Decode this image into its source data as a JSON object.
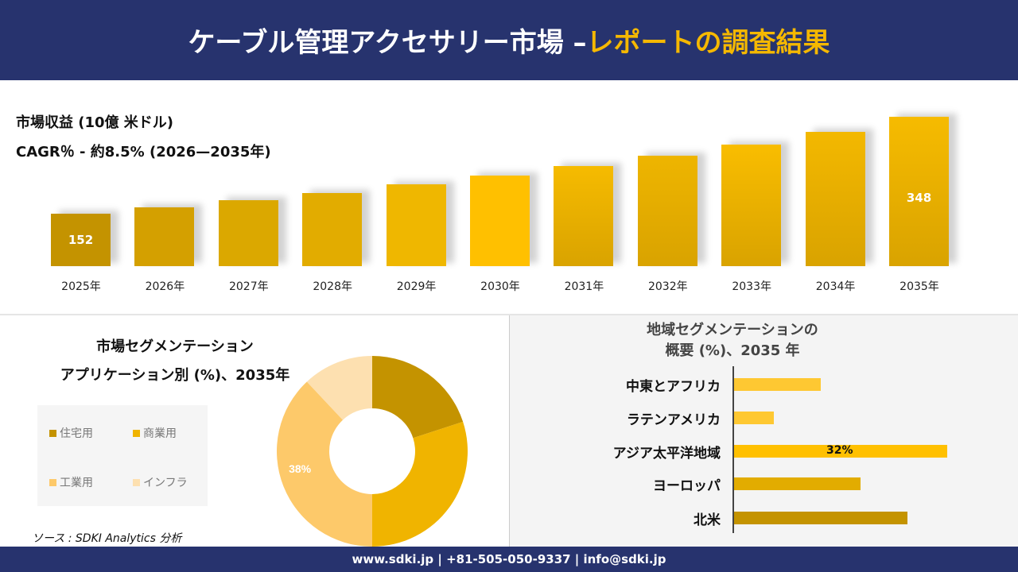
{
  "header": {
    "title_main": "ケーブル管理アクセサリー市場 –",
    "title_highlight": "レポートの調査結果"
  },
  "revenue": {
    "label": "市場収益 (10億 米ドル)",
    "cagr": "CAGR％ - 約8.5% (2026—2035年)"
  },
  "chart_data": [
    {
      "type": "bar",
      "categories": [
        "2025年",
        "2026年",
        "2027年",
        "2028年",
        "2029年",
        "2030年",
        "2031年",
        "2032年",
        "2033年",
        "2034年",
        "2035年"
      ],
      "values": [
        152,
        165,
        179,
        194,
        211,
        229,
        248,
        269,
        292,
        317,
        348
      ],
      "data_labels": {
        "0": "152",
        "10": "348"
      },
      "colors": [
        "#c49300",
        "#d4a000",
        "#dba800",
        "#e2ac00",
        "#efb700",
        "#ffc000",
        "#f6bb00",
        "#eeb500",
        "#f9bd00",
        "#f3b800",
        "#f6bb00"
      ],
      "ylabel": "市場収益 (10億 米ドル)"
    },
    {
      "type": "pie",
      "title": "市場セグメンテーション\nアプリケーション別 (%)、2035年",
      "categories": [
        "住宅用",
        "商業用",
        "工業用",
        "インフラ"
      ],
      "values": [
        20,
        30,
        38,
        12
      ],
      "colors": [
        "#c49300",
        "#f0b400",
        "#fdc96a",
        "#fde0b0"
      ],
      "data_labels": {
        "2": "38%"
      }
    },
    {
      "type": "bar",
      "orientation": "horizontal",
      "title": "地域セグメンテーションの\n概要 (%)、2035 年",
      "categories": [
        "中東とアフリカ",
        "ラテンアメリカ",
        "アジア太平洋地域",
        "ヨーロッパ",
        "北米"
      ],
      "values": [
        13,
        6,
        32,
        19,
        26
      ],
      "colors": [
        "#fec832",
        "#fec832",
        "#ffc000",
        "#e2ac00",
        "#c49300"
      ],
      "data_labels": {
        "2": "32%"
      }
    }
  ],
  "left": {
    "title1": "市場セグメンテーション",
    "title2": "アプリケーション別 (%)、2035年"
  },
  "right": {
    "title1": "地域セグメンテーションの",
    "title2": "概要 (%)、2035 年"
  },
  "source": "ソース : SDKI Analytics 分析",
  "footer": "www.sdki.jp | +81-505-050-9337 | info@sdki.jp"
}
